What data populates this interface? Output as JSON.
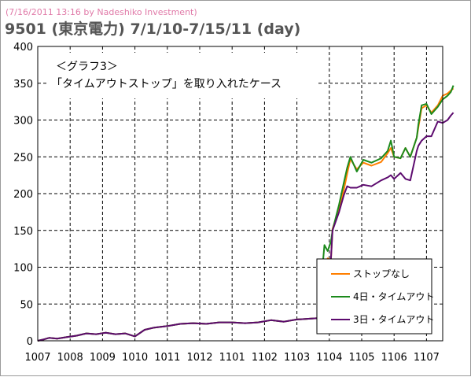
{
  "header": {
    "caption": "(7/16/2011 13:16 by Nadeshiko Investment)",
    "title": "9501 (東京電力)  7/1/10-7/15/11 (day)"
  },
  "annotation": {
    "line1": "＜グラフ3＞",
    "line2": "「タイムアウトストップ」を取り入れたケース"
  },
  "colors": {
    "caption": "#e07aa8",
    "title": "#555555",
    "grid": "#000000",
    "frame": "#9a9a9a"
  },
  "chart_data": {
    "type": "line",
    "title": "9501 (東京電力)  7/1/10-7/15/11 (day)",
    "xlabel": "",
    "ylabel": "",
    "ylim": [
      0,
      400
    ],
    "yticks": [
      0,
      50,
      100,
      150,
      200,
      250,
      300,
      350,
      400
    ],
    "xlim": [
      0,
      12.5
    ],
    "xtick_labels": [
      "1007",
      "1008",
      "1009",
      "1010",
      "1011",
      "1012",
      "1101",
      "1102",
      "1103",
      "1104",
      "1105",
      "1106",
      "1107"
    ],
    "grid": true,
    "legend_position": "bottom-right",
    "series": [
      {
        "name": "ストップなし",
        "color": "#ff7f00",
        "points": [
          [
            0,
            0
          ],
          [
            0.2,
            2
          ],
          [
            0.35,
            4
          ],
          [
            0.6,
            3
          ],
          [
            0.9,
            5
          ],
          [
            1.2,
            7
          ],
          [
            1.5,
            10
          ],
          [
            1.8,
            9
          ],
          [
            2.1,
            11
          ],
          [
            2.4,
            9
          ],
          [
            2.7,
            10
          ],
          [
            3.0,
            6
          ],
          [
            3.3,
            15
          ],
          [
            3.6,
            18
          ],
          [
            4.0,
            20
          ],
          [
            4.4,
            23
          ],
          [
            4.8,
            24
          ],
          [
            5.2,
            23
          ],
          [
            5.6,
            25
          ],
          [
            6.0,
            25
          ],
          [
            6.4,
            24
          ],
          [
            6.8,
            25
          ],
          [
            7.2,
            28
          ],
          [
            7.6,
            26
          ],
          [
            8.0,
            29
          ],
          [
            8.4,
            30
          ],
          [
            8.75,
            31
          ],
          [
            8.77,
            90
          ],
          [
            8.85,
            102
          ],
          [
            8.95,
            112
          ],
          [
            9.05,
            110
          ],
          [
            9.1,
            152
          ],
          [
            9.3,
            180
          ],
          [
            9.45,
            205
          ],
          [
            9.55,
            227
          ],
          [
            9.65,
            247
          ],
          [
            9.85,
            233
          ],
          [
            10.05,
            242
          ],
          [
            10.3,
            238
          ],
          [
            10.6,
            243
          ],
          [
            10.8,
            255
          ],
          [
            10.9,
            262
          ],
          [
            11.0,
            250
          ],
          [
            11.2,
            248
          ],
          [
            11.35,
            262
          ],
          [
            11.5,
            250
          ],
          [
            11.7,
            276
          ],
          [
            11.75,
            290
          ],
          [
            11.85,
            316
          ],
          [
            12.0,
            320
          ],
          [
            12.15,
            310
          ],
          [
            12.35,
            320
          ],
          [
            12.5,
            333
          ],
          [
            12.65,
            336
          ],
          [
            12.75,
            340
          ],
          [
            12.83,
            343
          ]
        ]
      },
      {
        "name": "4日・タイムアウト",
        "color": "#1c8a1c",
        "points": [
          [
            0,
            0
          ],
          [
            0.2,
            2
          ],
          [
            0.35,
            4
          ],
          [
            0.6,
            3
          ],
          [
            0.9,
            5
          ],
          [
            1.2,
            7
          ],
          [
            1.5,
            10
          ],
          [
            1.8,
            9
          ],
          [
            2.1,
            11
          ],
          [
            2.4,
            9
          ],
          [
            2.7,
            10
          ],
          [
            3.0,
            6
          ],
          [
            3.3,
            15
          ],
          [
            3.6,
            18
          ],
          [
            4.0,
            20
          ],
          [
            4.4,
            23
          ],
          [
            4.8,
            24
          ],
          [
            5.2,
            23
          ],
          [
            5.6,
            25
          ],
          [
            6.0,
            25
          ],
          [
            6.4,
            24
          ],
          [
            6.8,
            25
          ],
          [
            7.2,
            28
          ],
          [
            7.6,
            26
          ],
          [
            8.0,
            29
          ],
          [
            8.4,
            30
          ],
          [
            8.75,
            31
          ],
          [
            8.77,
            90
          ],
          [
            8.85,
            130
          ],
          [
            8.95,
            122
          ],
          [
            9.05,
            135
          ],
          [
            9.1,
            150
          ],
          [
            9.3,
            185
          ],
          [
            9.45,
            215
          ],
          [
            9.55,
            235
          ],
          [
            9.65,
            250
          ],
          [
            9.85,
            230
          ],
          [
            10.05,
            246
          ],
          [
            10.3,
            242
          ],
          [
            10.6,
            248
          ],
          [
            10.8,
            258
          ],
          [
            10.9,
            272
          ],
          [
            11.0,
            250
          ],
          [
            11.2,
            248
          ],
          [
            11.35,
            262
          ],
          [
            11.5,
            250
          ],
          [
            11.7,
            276
          ],
          [
            11.75,
            294
          ],
          [
            11.85,
            320
          ],
          [
            12.0,
            322
          ],
          [
            12.15,
            308
          ],
          [
            12.35,
            318
          ],
          [
            12.5,
            328
          ],
          [
            12.65,
            333
          ],
          [
            12.75,
            338
          ],
          [
            12.83,
            347
          ]
        ]
      },
      {
        "name": "3日・タイムアウト",
        "color": "#5c0a6e",
        "points": [
          [
            0,
            0
          ],
          [
            0.2,
            2
          ],
          [
            0.35,
            4
          ],
          [
            0.6,
            3
          ],
          [
            0.9,
            5
          ],
          [
            1.2,
            7
          ],
          [
            1.5,
            10
          ],
          [
            1.8,
            9
          ],
          [
            2.1,
            11
          ],
          [
            2.4,
            9
          ],
          [
            2.7,
            10
          ],
          [
            3.0,
            6
          ],
          [
            3.3,
            15
          ],
          [
            3.6,
            18
          ],
          [
            4.0,
            20
          ],
          [
            4.4,
            23
          ],
          [
            4.8,
            24
          ],
          [
            5.2,
            23
          ],
          [
            5.6,
            25
          ],
          [
            6.0,
            25
          ],
          [
            6.4,
            24
          ],
          [
            6.8,
            25
          ],
          [
            7.2,
            28
          ],
          [
            7.6,
            26
          ],
          [
            8.0,
            29
          ],
          [
            8.4,
            30
          ],
          [
            8.75,
            31
          ],
          [
            8.77,
            65
          ],
          [
            8.85,
            95
          ],
          [
            8.95,
            100
          ],
          [
            9.05,
            112
          ],
          [
            9.1,
            150
          ],
          [
            9.3,
            175
          ],
          [
            9.45,
            198
          ],
          [
            9.55,
            210
          ],
          [
            9.65,
            208
          ],
          [
            9.85,
            208
          ],
          [
            10.05,
            212
          ],
          [
            10.3,
            210
          ],
          [
            10.6,
            218
          ],
          [
            10.8,
            222
          ],
          [
            10.9,
            225
          ],
          [
            11.0,
            220
          ],
          [
            11.2,
            228
          ],
          [
            11.35,
            220
          ],
          [
            11.5,
            218
          ],
          [
            11.7,
            258
          ],
          [
            11.75,
            265
          ],
          [
            11.85,
            272
          ],
          [
            12.0,
            278
          ],
          [
            12.15,
            278
          ],
          [
            12.35,
            298
          ],
          [
            12.5,
            296
          ],
          [
            12.65,
            300
          ],
          [
            12.75,
            306
          ],
          [
            12.83,
            310
          ]
        ]
      }
    ]
  }
}
